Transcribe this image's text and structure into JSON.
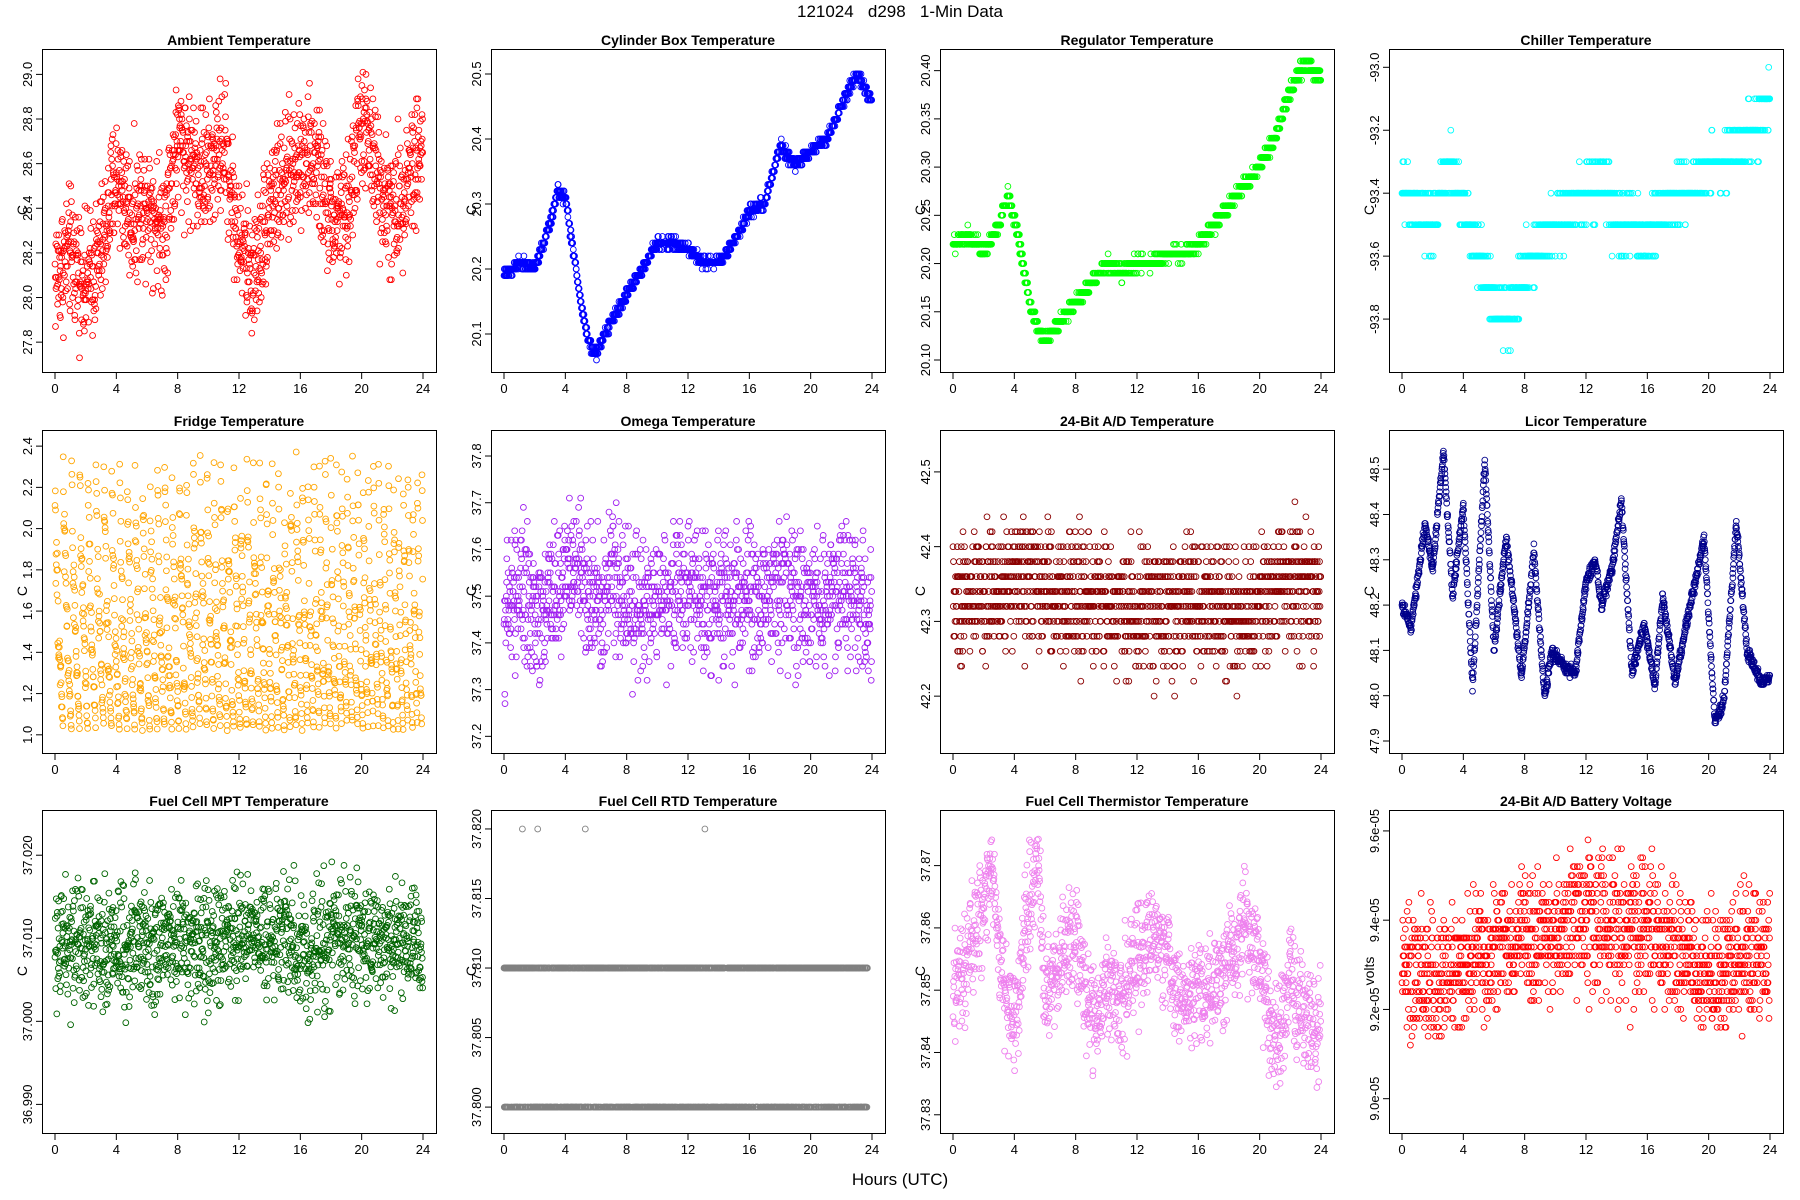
{
  "title": "121024   d298   1-Min Data",
  "xlabel": "Hours (UTC)",
  "chart_data": [
    {
      "type": "scatter",
      "title": "Ambient Temperature",
      "ylabel": "C",
      "color": "#ff0000",
      "xlim": [
        0,
        24
      ],
      "xticks": [
        "0",
        "4",
        "8",
        "12",
        "16",
        "20",
        "24"
      ],
      "ylim": [
        27.72,
        29.06
      ],
      "yticks": [
        "27.8",
        "28.0",
        "28.2",
        "28.4",
        "28.6",
        "28.8",
        "29.0"
      ],
      "trend": [
        [
          0,
          28.1
        ],
        [
          1,
          28.2
        ],
        [
          2,
          28.05
        ],
        [
          3,
          28.2
        ],
        [
          4,
          28.55
        ],
        [
          5,
          28.35
        ],
        [
          6,
          28.45
        ],
        [
          7,
          28.3
        ],
        [
          8,
          28.7
        ],
        [
          9,
          28.6
        ],
        [
          10,
          28.55
        ],
        [
          11,
          28.7
        ],
        [
          12,
          28.25
        ],
        [
          13,
          28.1
        ],
        [
          14,
          28.45
        ],
        [
          15,
          28.5
        ],
        [
          16,
          28.65
        ],
        [
          17,
          28.6
        ],
        [
          18,
          28.35
        ],
        [
          19,
          28.35
        ],
        [
          20,
          28.8
        ],
        [
          21,
          28.55
        ],
        [
          22,
          28.35
        ],
        [
          23,
          28.55
        ],
        [
          24,
          28.7
        ]
      ],
      "noise": 0.22,
      "quant": 0.01
    },
    {
      "type": "scatter",
      "title": "Cylinder Box Temperature",
      "ylabel": "C",
      "color": "#0000ff",
      "xlim": [
        0,
        24
      ],
      "xticks": [
        "0",
        "4",
        "8",
        "12",
        "16",
        "20",
        "24"
      ],
      "ylim": [
        20.06,
        20.52
      ],
      "yticks": [
        "20.1",
        "20.2",
        "20.3",
        "20.4",
        "20.5"
      ],
      "trend": [
        [
          0,
          20.19
        ],
        [
          1,
          20.21
        ],
        [
          2,
          20.2
        ],
        [
          3,
          20.27
        ],
        [
          3.5,
          20.32
        ],
        [
          4,
          20.31
        ],
        [
          5,
          20.15
        ],
        [
          5.5,
          20.09
        ],
        [
          6,
          20.07
        ],
        [
          7,
          20.12
        ],
        [
          8,
          20.16
        ],
        [
          9,
          20.2
        ],
        [
          10,
          20.24
        ],
        [
          11,
          20.24
        ],
        [
          12,
          20.23
        ],
        [
          13,
          20.21
        ],
        [
          14,
          20.21
        ],
        [
          15,
          20.24
        ],
        [
          16,
          20.29
        ],
        [
          17,
          20.3
        ],
        [
          18,
          20.39
        ],
        [
          19,
          20.36
        ],
        [
          20,
          20.38
        ],
        [
          21,
          20.4
        ],
        [
          22,
          20.45
        ],
        [
          23,
          20.5
        ],
        [
          24,
          20.46
        ]
      ],
      "noise": 0.006,
      "quant": 0.01
    },
    {
      "type": "scatter",
      "title": "Regulator Temperature",
      "ylabel": "C",
      "color": "#00ff00",
      "xlim": [
        0,
        24
      ],
      "xticks": [
        "0",
        "4",
        "8",
        "12",
        "16",
        "20",
        "24"
      ],
      "ylim": [
        20.1,
        20.41
      ],
      "yticks": [
        "20.10",
        "20.15",
        "20.20",
        "20.25",
        "20.30",
        "20.35",
        "20.40"
      ],
      "trend": [
        [
          0,
          20.22
        ],
        [
          1,
          20.23
        ],
        [
          2,
          20.21
        ],
        [
          3,
          20.24
        ],
        [
          3.6,
          20.27
        ],
        [
          4,
          20.25
        ],
        [
          5,
          20.16
        ],
        [
          5.6,
          20.13
        ],
        [
          6,
          20.12
        ],
        [
          7,
          20.14
        ],
        [
          8,
          20.16
        ],
        [
          9,
          20.18
        ],
        [
          10,
          20.2
        ],
        [
          11,
          20.19
        ],
        [
          12,
          20.2
        ],
        [
          13,
          20.2
        ],
        [
          14,
          20.21
        ],
        [
          15,
          20.21
        ],
        [
          16,
          20.22
        ],
        [
          17,
          20.24
        ],
        [
          18,
          20.26
        ],
        [
          19,
          20.28
        ],
        [
          20,
          20.3
        ],
        [
          21,
          20.33
        ],
        [
          22,
          20.38
        ],
        [
          23,
          20.41
        ],
        [
          24,
          20.39
        ]
      ],
      "noise": 0.005,
      "quant": 0.01
    },
    {
      "type": "scatter",
      "title": "Chiller Temperature",
      "ylabel": "C",
      "color": "#00ffff",
      "xlim": [
        0,
        24
      ],
      "xticks": [
        "0",
        "4",
        "8",
        "12",
        "16",
        "20",
        "24"
      ],
      "ylim": [
        -93.93,
        -92.98
      ],
      "yticks": [
        "-93.8",
        "-93.6",
        "-93.4",
        "-93.2",
        "-93.0"
      ],
      "trend": [
        [
          0,
          -93.4
        ],
        [
          1,
          -93.45
        ],
        [
          2,
          -93.5
        ],
        [
          3,
          -93.3
        ],
        [
          4,
          -93.45
        ],
        [
          5,
          -93.6
        ],
        [
          6,
          -93.75
        ],
        [
          7,
          -93.8
        ],
        [
          8,
          -93.65
        ],
        [
          9,
          -93.55
        ],
        [
          10,
          -93.5
        ],
        [
          11,
          -93.45
        ],
        [
          12,
          -93.4
        ],
        [
          13,
          -93.35
        ],
        [
          14,
          -93.5
        ],
        [
          15,
          -93.5
        ],
        [
          16,
          -93.55
        ],
        [
          17,
          -93.45
        ],
        [
          18,
          -93.4
        ],
        [
          19,
          -93.4
        ],
        [
          20,
          -93.3
        ],
        [
          21,
          -93.3
        ],
        [
          22,
          -93.25
        ],
        [
          23,
          -93.2
        ],
        [
          24,
          -93.1
        ]
      ],
      "noise": 0.06,
      "quant": 0.1
    },
    {
      "type": "scatter",
      "title": "Fridge Temperature",
      "ylabel": "C",
      "color": "#ffa500",
      "xlim": [
        0,
        24
      ],
      "xticks": [
        "0",
        "4",
        "8",
        "12",
        "16",
        "20",
        "24"
      ],
      "ylim": [
        0.97,
        2.42
      ],
      "yticks": [
        "1.0",
        "1.2",
        "1.4",
        "1.6",
        "1.8",
        "2.0",
        "2.2",
        "2.4"
      ],
      "sawtooth": {
        "min": 1.02,
        "max": 2.38
      },
      "quant": 0.0
    },
    {
      "type": "scatter",
      "title": "Omega Temperature",
      "ylabel": "C",
      "color": "#a020f0",
      "xlim": [
        0,
        24
      ],
      "xticks": [
        "0",
        "4",
        "8",
        "12",
        "16",
        "20",
        "24"
      ],
      "ylim": [
        37.19,
        37.83
      ],
      "yticks": [
        "37.2",
        "37.3",
        "37.4",
        "37.5",
        "37.6",
        "37.7",
        "37.8"
      ],
      "trend": [
        [
          0,
          37.45
        ],
        [
          1,
          37.52
        ],
        [
          2,
          37.45
        ],
        [
          3,
          37.5
        ],
        [
          4,
          37.55
        ],
        [
          5,
          37.55
        ],
        [
          6,
          37.48
        ],
        [
          7,
          37.55
        ],
        [
          8,
          37.5
        ],
        [
          9,
          37.45
        ],
        [
          10,
          37.5
        ],
        [
          11,
          37.5
        ],
        [
          12,
          37.52
        ],
        [
          13,
          37.48
        ],
        [
          14,
          37.5
        ],
        [
          15,
          37.5
        ],
        [
          16,
          37.48
        ],
        [
          17,
          37.5
        ],
        [
          18,
          37.52
        ],
        [
          19,
          37.5
        ],
        [
          20,
          37.48
        ],
        [
          21,
          37.5
        ],
        [
          22,
          37.52
        ],
        [
          23,
          37.5
        ],
        [
          24,
          37.45
        ]
      ],
      "noise": 0.11,
      "quant": 0.01
    },
    {
      "type": "scatter",
      "title": "24-Bit A/D Temperature",
      "ylabel": "C",
      "color": "#8b0000",
      "xlim": [
        0,
        24
      ],
      "xticks": [
        "0",
        "4",
        "8",
        "12",
        "16",
        "20",
        "24"
      ],
      "ylim": [
        42.14,
        42.54
      ],
      "yticks": [
        "42.2",
        "42.3",
        "42.4",
        "42.5"
      ],
      "trend": [
        [
          0,
          42.33
        ],
        [
          4,
          42.35
        ],
        [
          8,
          42.33
        ],
        [
          12,
          42.32
        ],
        [
          16,
          42.32
        ],
        [
          20,
          42.32
        ],
        [
          22,
          42.35
        ],
        [
          24,
          42.33
        ]
      ],
      "noise": 0.065,
      "quant": 0.02
    },
    {
      "type": "scatter",
      "title": "Licor Temperature",
      "ylabel": "C",
      "color": "#00008b",
      "xlim": [
        0,
        24
      ],
      "xticks": [
        "0",
        "4",
        "8",
        "12",
        "16",
        "20",
        "24"
      ],
      "ylim": [
        47.9,
        48.56
      ],
      "yticks": [
        "47.9",
        "48.0",
        "48.1",
        "48.2",
        "48.3",
        "48.4",
        "48.5"
      ],
      "trend": [
        [
          0,
          48.2
        ],
        [
          0.6,
          48.15
        ],
        [
          1.5,
          48.38
        ],
        [
          2,
          48.28
        ],
        [
          2.7,
          48.54
        ],
        [
          3.3,
          48.22
        ],
        [
          4,
          48.42
        ],
        [
          4.6,
          48.02
        ],
        [
          5.4,
          48.52
        ],
        [
          6,
          48.1
        ],
        [
          6.8,
          48.35
        ],
        [
          7.3,
          48.2
        ],
        [
          7.8,
          48.04
        ],
        [
          8.6,
          48.32
        ],
        [
          9.3,
          48.0
        ],
        [
          9.8,
          48.1
        ],
        [
          10.6,
          48.06
        ],
        [
          11.3,
          48.05
        ],
        [
          12,
          48.25
        ],
        [
          12.6,
          48.3
        ],
        [
          13,
          48.2
        ],
        [
          13.7,
          48.28
        ],
        [
          14.3,
          48.43
        ],
        [
          15,
          48.05
        ],
        [
          15.8,
          48.16
        ],
        [
          16.5,
          48.02
        ],
        [
          17,
          48.22
        ],
        [
          17.8,
          48.03
        ],
        [
          18.5,
          48.15
        ],
        [
          19.3,
          48.28
        ],
        [
          19.7,
          48.35
        ],
        [
          20.4,
          47.94
        ],
        [
          21,
          47.99
        ],
        [
          21.8,
          48.38
        ],
        [
          22.5,
          48.1
        ],
        [
          23.4,
          48.03
        ],
        [
          24,
          48.04
        ]
      ],
      "noise": 0.01,
      "quant": 0.005
    },
    {
      "type": "scatter",
      "title": "Fuel Cell MPT Temperature",
      "ylabel": "C",
      "color": "#006400",
      "xlim": [
        0,
        24
      ],
      "xticks": [
        "0",
        "4",
        "8",
        "12",
        "16",
        "20",
        "24"
      ],
      "ylim": [
        36.988,
        37.024
      ],
      "yticks": [
        "36.990",
        "37.000",
        "37.010",
        "37.020"
      ],
      "trend": [
        [
          0,
          37.009
        ],
        [
          24,
          37.01
        ]
      ],
      "noise": 0.0055,
      "quant": 0.0
    },
    {
      "type": "scatter",
      "title": "Fuel Cell RTD Temperature",
      "ylabel": "C",
      "color": "#808080",
      "xlim": [
        0,
        24
      ],
      "xticks": [
        "0",
        "4",
        "8",
        "12",
        "16",
        "20",
        "24"
      ],
      "ylim": [
        37.799,
        37.8205
      ],
      "yticks": [
        "37.800",
        "37.805",
        "37.810",
        "37.815",
        "37.820"
      ],
      "levels": [
        37.81,
        37.8
      ],
      "outliers": [
        [
          1.2,
          37.82
        ],
        [
          2.2,
          37.82
        ],
        [
          5.3,
          37.82
        ],
        [
          13.1,
          37.82
        ]
      ]
    },
    {
      "type": "scatter",
      "title": "Fuel Cell Thermistor Temperature",
      "ylabel": "C",
      "color": "#ee82ee",
      "xlim": [
        0,
        24
      ],
      "xticks": [
        "0",
        "4",
        "8",
        "12",
        "16",
        "20",
        "24"
      ],
      "ylim": [
        37.829,
        37.877
      ],
      "yticks": [
        "37.83",
        "37.84",
        "37.85",
        "37.86",
        "37.87"
      ],
      "trend": [
        [
          0,
          37.848
        ],
        [
          1,
          37.856
        ],
        [
          2,
          37.862
        ],
        [
          2.5,
          37.87
        ],
        [
          3,
          37.855
        ],
        [
          4,
          37.845
        ],
        [
          5,
          37.865
        ],
        [
          5.5,
          37.872
        ],
        [
          6,
          37.848
        ],
        [
          7,
          37.855
        ],
        [
          8,
          37.86
        ],
        [
          9,
          37.845
        ],
        [
          10,
          37.85
        ],
        [
          11,
          37.848
        ],
        [
          12,
          37.855
        ],
        [
          13,
          37.858
        ],
        [
          14,
          37.855
        ],
        [
          15,
          37.848
        ],
        [
          16,
          37.852
        ],
        [
          17,
          37.85
        ],
        [
          18,
          37.855
        ],
        [
          19,
          37.86
        ],
        [
          20,
          37.855
        ],
        [
          21,
          37.84
        ],
        [
          22,
          37.852
        ],
        [
          23,
          37.845
        ],
        [
          24,
          37.845
        ]
      ],
      "noise": 0.0065,
      "quant": 0.0
    },
    {
      "type": "scatter",
      "title": "24-Bit A/D Battery Voltage",
      "ylabel": "volts",
      "color": "#ff0000",
      "xlim": [
        0,
        24
      ],
      "xticks": [
        "0",
        "4",
        "8",
        "12",
        "16",
        "20",
        "24"
      ],
      "ylim": [
        8.95e-05,
        9.62e-05
      ],
      "yticks": [
        "9.0e-05",
        "9.2e-05",
        "9.4e-05",
        "9.6e-05"
      ],
      "trend": [
        [
          0,
          9.3e-05
        ],
        [
          2,
          9.25e-05
        ],
        [
          4,
          9.3e-05
        ],
        [
          6,
          9.33e-05
        ],
        [
          8,
          9.36e-05
        ],
        [
          10,
          9.37e-05
        ],
        [
          12,
          9.4e-05
        ],
        [
          14,
          9.38e-05
        ],
        [
          16,
          9.37e-05
        ],
        [
          18,
          9.33e-05
        ],
        [
          20,
          9.28e-05
        ],
        [
          22,
          9.32e-05
        ],
        [
          24,
          9.32e-05
        ]
      ],
      "noise": 1.1e-06,
      "quant": 2e-07
    }
  ]
}
